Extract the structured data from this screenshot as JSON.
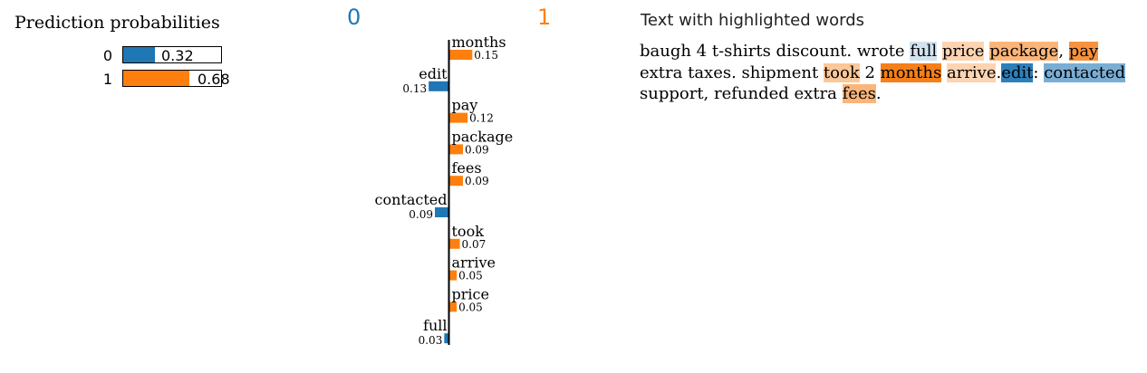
{
  "probabilities": {
    "title": "Prediction probabilities",
    "rows": [
      {
        "label": "0",
        "value": 0.32,
        "value_text": "0.32",
        "color": "#1f77b4"
      },
      {
        "label": "1",
        "value": 0.68,
        "value_text": "0.68",
        "color": "#ff7f0e"
      }
    ]
  },
  "class_headers": {
    "negative": {
      "label": "0",
      "color": "#1f77b4"
    },
    "positive": {
      "label": "1",
      "color": "#ff7f0e"
    }
  },
  "chart_data": {
    "type": "bar",
    "orientation": "horizontal",
    "categories": [
      "months",
      "edit",
      "pay",
      "package",
      "fees",
      "contacted",
      "took",
      "arrive",
      "price",
      "full"
    ],
    "values": [
      0.15,
      -0.13,
      0.12,
      0.09,
      0.09,
      -0.09,
      0.07,
      0.05,
      0.05,
      -0.03
    ],
    "value_labels": [
      "0.15",
      "0.13",
      "0.12",
      "0.09",
      "0.09",
      "0.09",
      "0.07",
      "0.05",
      "0.05",
      "0.03"
    ],
    "series": [
      {
        "name": "0",
        "color": "#1f77b4"
      },
      {
        "name": "1",
        "color": "#ff7f0e"
      }
    ]
  },
  "highlighted_text": {
    "title": "Text with highlighted words",
    "segments": [
      {
        "text": "baugh 4 t-shirts discount. wrote "
      },
      {
        "text": "full",
        "bg": "#d2e3f0"
      },
      {
        "text": " "
      },
      {
        "text": "price",
        "bg": "#fdd4b1"
      },
      {
        "text": " "
      },
      {
        "text": "package",
        "bg": "#fbb57a"
      },
      {
        "text": ", "
      },
      {
        "text": "pay",
        "bg": "#f8923c"
      },
      {
        "text": " extra taxes. shipment "
      },
      {
        "text": "took",
        "bg": "#fcc799"
      },
      {
        "text": " 2 "
      },
      {
        "text": "months",
        "bg": "#f57f18"
      },
      {
        "text": " "
      },
      {
        "text": "arrive",
        "bg": "#fdd4b1"
      },
      {
        "text": "."
      },
      {
        "text": "edit",
        "bg": "#2d7fba"
      },
      {
        "text": ": "
      },
      {
        "text": "contacted",
        "bg": "#7aadd3"
      },
      {
        "text": " support, refunded extra "
      },
      {
        "text": "fees",
        "bg": "#fbb57a"
      },
      {
        "text": "."
      }
    ]
  }
}
